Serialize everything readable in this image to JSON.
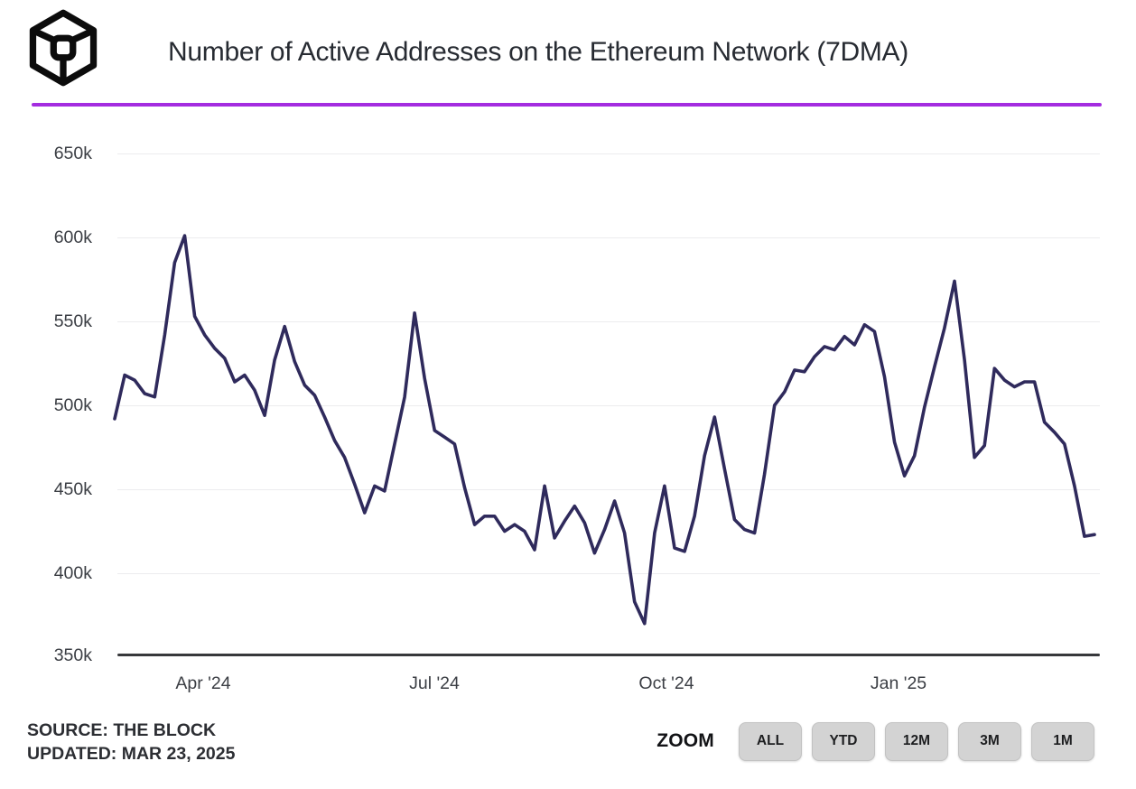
{
  "header": {
    "title": "Number of Active Addresses on the Ethereum Network (7DMA)",
    "logo": "the-block-logo"
  },
  "colors": {
    "accent_divider": "#a42ce0",
    "line": "#2f2a5c",
    "button_bg": "#d3d3d3",
    "axis": "#37383b",
    "gridline": "#ececee"
  },
  "chart_data": {
    "type": "line",
    "title": "Number of Active Addresses on the Ethereum Network (7DMA)",
    "series_name": "Active Ethereum Addresses (7-day moving average)",
    "y_ticks": [
      "650k",
      "600k",
      "550k",
      "500k",
      "450k",
      "400k",
      "350k"
    ],
    "x_ticks": [
      "Apr '24",
      "Jul '24",
      "Oct '24",
      "Jan '25"
    ],
    "ylim_k": [
      350,
      650
    ],
    "grid": "horizontal",
    "legend": "none",
    "line_color": "#2f2a5c",
    "values_unit": "thousands of addresses, sampled approx. every 4 days from late Feb 2024 to Mar 2025",
    "values_k": [
      492,
      518,
      515,
      507,
      505,
      542,
      585,
      601,
      553,
      542,
      534,
      528,
      514,
      518,
      509,
      494,
      527,
      547,
      526,
      512,
      506,
      493,
      479,
      469,
      453,
      436,
      452,
      449,
      477,
      505,
      555,
      516,
      485,
      481,
      477,
      451,
      429,
      434,
      434,
      425,
      429,
      425,
      414,
      452,
      421,
      431,
      440,
      430,
      412,
      426,
      443,
      424,
      383,
      370,
      424,
      452,
      415,
      413,
      434,
      470,
      493,
      462,
      432,
      426,
      424,
      459,
      500,
      508,
      521,
      520,
      529,
      535,
      533,
      541,
      536,
      548,
      544,
      517,
      478,
      458,
      470,
      499,
      523,
      546,
      574,
      527,
      469,
      476,
      522,
      515,
      511,
      514,
      514,
      490,
      484,
      477,
      452,
      422,
      423
    ],
    "extremes": {
      "peak_mar_2024_k": 601,
      "spike_jul_2024_k": 555,
      "low_sep_2024_k": 368,
      "spike_jan_2025_k": 576,
      "last_value_k": 423
    }
  },
  "footer": {
    "source": "SOURCE: THE BLOCK",
    "updated": "UPDATED: MAR 23, 2025",
    "zoom_label": "ZOOM",
    "zoom_buttons": [
      "ALL",
      "YTD",
      "12M",
      "3M",
      "1M"
    ]
  }
}
